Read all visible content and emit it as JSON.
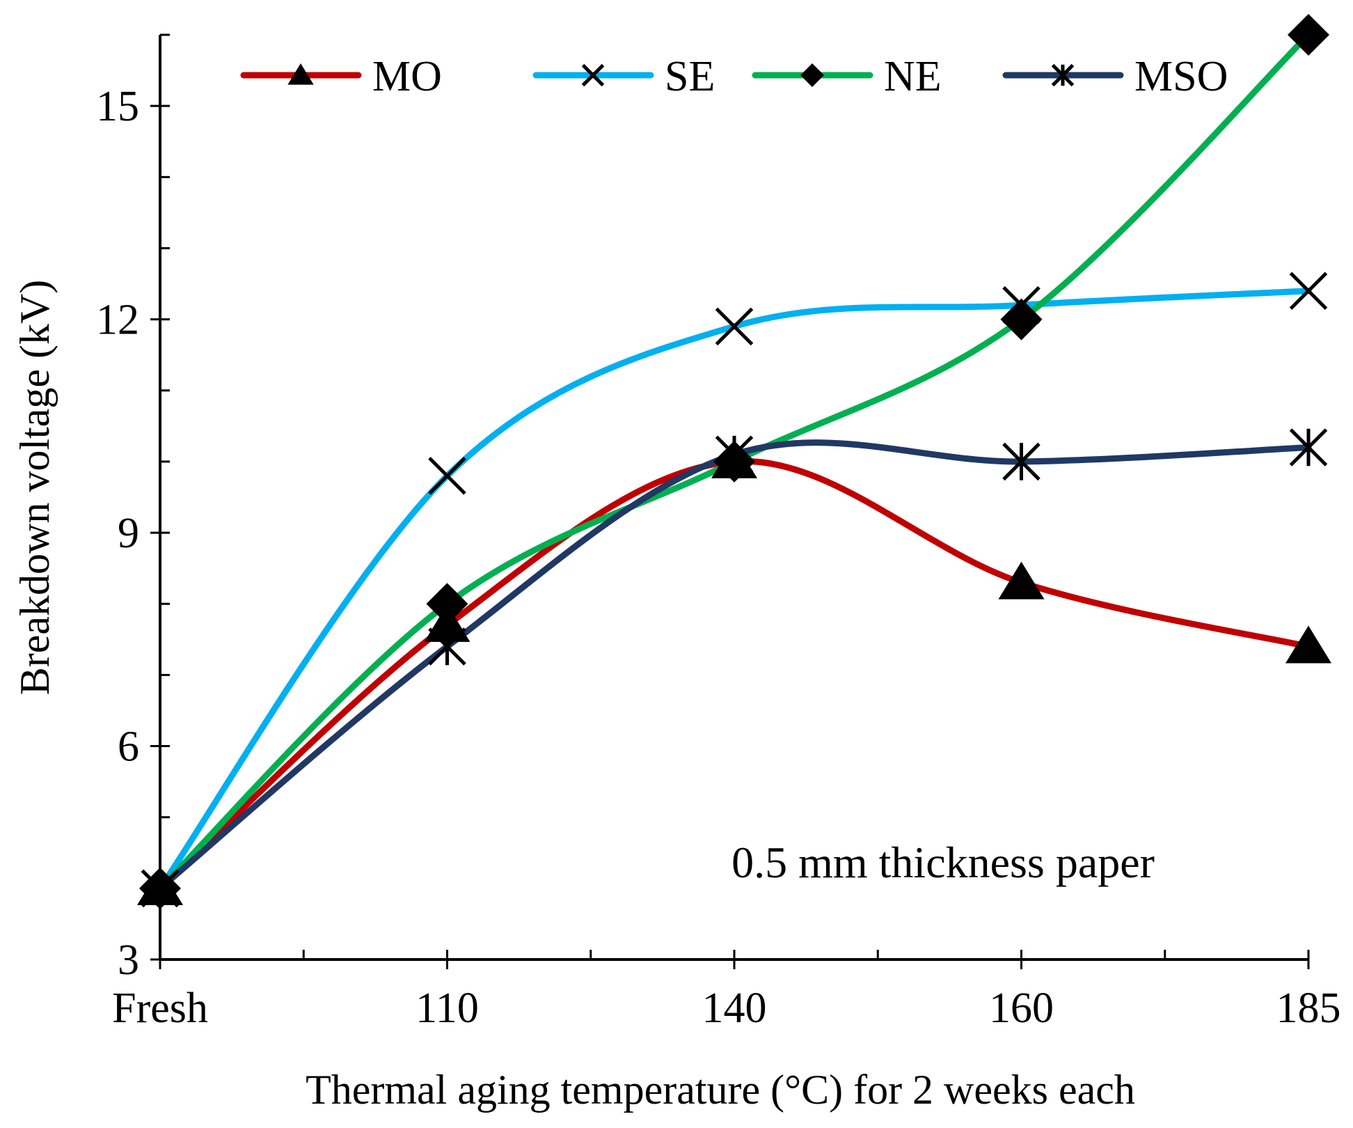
{
  "chart_data": {
    "type": "line",
    "title": "",
    "xlabel": "Thermal aging temperature (°C) for 2 weeks each",
    "ylabel": "Breakdown voltage (kV)",
    "categories": [
      "Fresh",
      "110",
      "140",
      "160",
      "185"
    ],
    "ylim": [
      3,
      16
    ],
    "yticks": [
      3,
      6,
      9,
      12,
      15
    ],
    "grid": false,
    "legend_position": "top",
    "annotation": "0.5 mm thickness paper",
    "series": [
      {
        "name": "MO",
        "color": "#C00000",
        "marker": "triangle",
        "values": [
          4.0,
          7.7,
          10.0,
          8.3,
          7.4
        ]
      },
      {
        "name": "SE",
        "color": "#00B0F0",
        "marker": "x",
        "values": [
          4.0,
          9.8,
          11.9,
          12.2,
          12.4
        ]
      },
      {
        "name": "NE",
        "color": "#00B050",
        "marker": "diamond",
        "values": [
          4.0,
          8.0,
          10.0,
          12.0,
          16.0
        ]
      },
      {
        "name": "MSO",
        "color": "#203864",
        "marker": "star",
        "values": [
          4.0,
          7.4,
          10.1,
          10.0,
          10.2
        ]
      }
    ]
  }
}
